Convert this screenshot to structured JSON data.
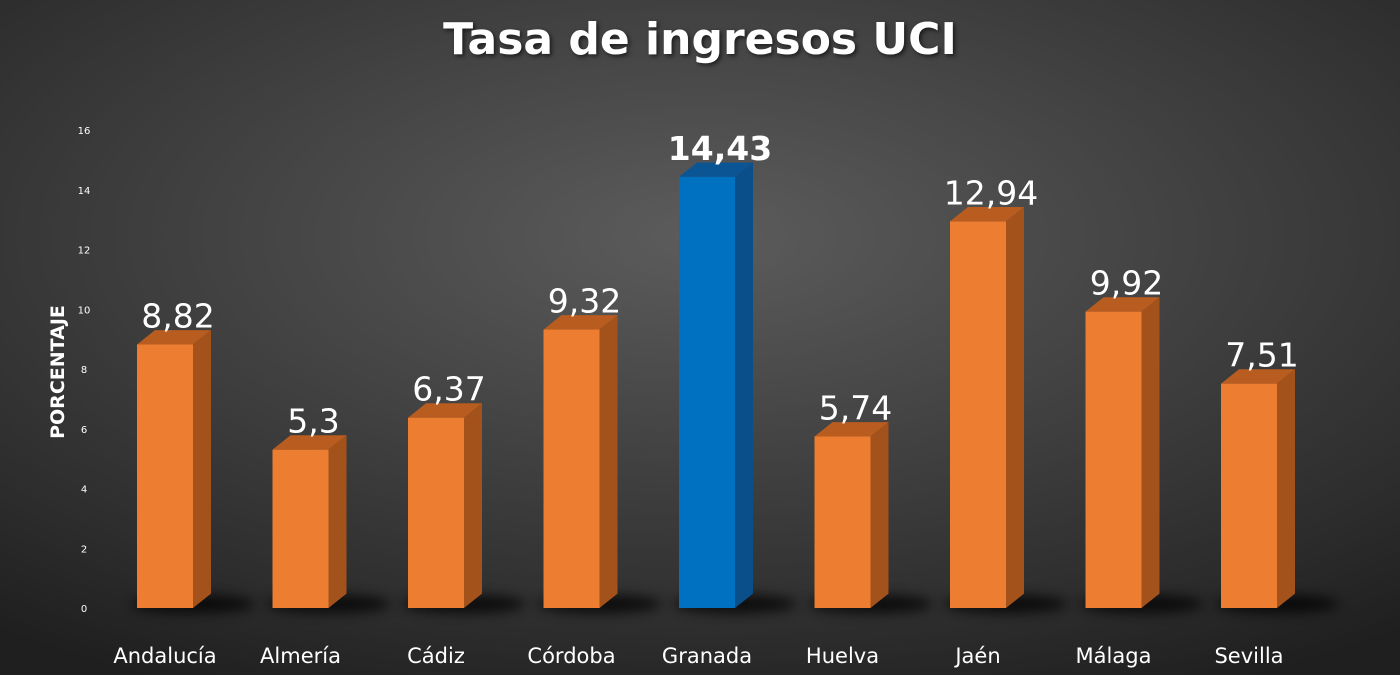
{
  "chart_data": {
    "type": "bar",
    "title": "Tasa de ingresos UCI",
    "xlabel": "",
    "ylabel": "PORCENTAJE",
    "ylim": [
      0,
      16
    ],
    "yticks": [
      0,
      2,
      4,
      6,
      8,
      10,
      12,
      14,
      16
    ],
    "grid": false,
    "legend": "none",
    "categories": [
      "Andalucía",
      "Almería",
      "Cádiz",
      "Córdoba",
      "Granada",
      "Huelva",
      "Jaén",
      "Málaga",
      "Sevilla"
    ],
    "values": [
      8.82,
      5.3,
      6.37,
      9.32,
      14.43,
      5.74,
      12.94,
      9.92,
      7.51
    ],
    "value_labels": [
      "8,82",
      "5,3",
      "6,37",
      "9,32",
      "14,43",
      "5,74",
      "12,94",
      "9,92",
      "7,51"
    ],
    "highlight_category": "Granada",
    "colors": {
      "bar": "#ed7d31",
      "bar_side": "#a4521b",
      "bar_top": "#b85c1f",
      "highlight": "#0070c0",
      "highlight_side": "#0a4e8a",
      "highlight_top": "#0b5594"
    }
  }
}
